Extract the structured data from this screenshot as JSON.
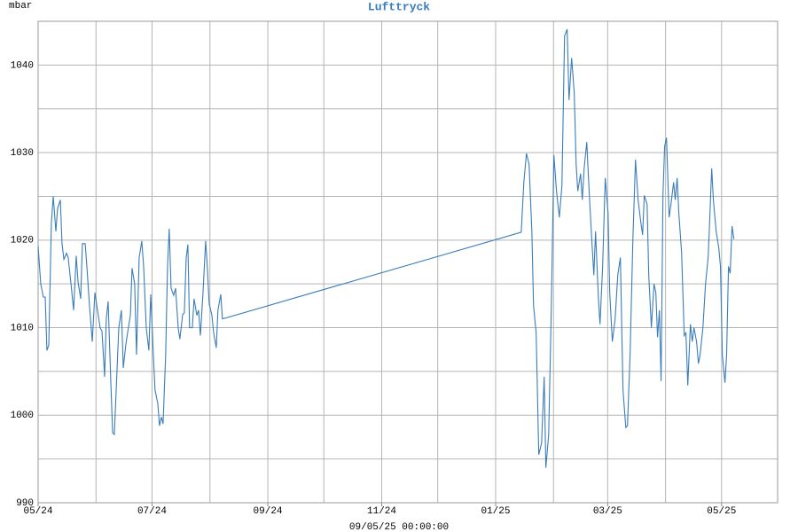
{
  "chart_data": {
    "type": "line",
    "title": "Lufttryck",
    "y_unit": "mbar",
    "footer": "09/05/25 00:00:00",
    "color": "#3a7dba",
    "title_color": "#3a7dba",
    "grid": true,
    "xlim": [
      0,
      396
    ],
    "xticks": [
      {
        "value": 0,
        "label": "05/24"
      },
      {
        "value": 61,
        "label": "07/24"
      },
      {
        "value": 123,
        "label": "09/24"
      },
      {
        "value": 184,
        "label": "11/24"
      },
      {
        "value": 245,
        "label": "01/25"
      },
      {
        "value": 305,
        "label": "03/25"
      },
      {
        "value": 366,
        "label": "05/25"
      }
    ],
    "x_minor_ticks": [
      31,
      92,
      153,
      214,
      276,
      336
    ],
    "ylim": [
      990,
      1045
    ],
    "yticks": [
      990,
      1000,
      1010,
      1020,
      1030,
      1040
    ],
    "y_minor_ticks": [
      995,
      1005,
      1015,
      1025,
      1035
    ],
    "x": [
      0,
      1.4,
      2.8,
      3.8,
      4.7,
      5.7,
      7.1,
      8.1,
      9.5,
      10.4,
      11.9,
      12.8,
      13.8,
      15.2,
      16.1,
      17.6,
      19.0,
      20.4,
      21.4,
      22.8,
      23.7,
      25.2,
      26.1,
      27.5,
      29.0,
      30.4,
      31.8,
      33.2,
      34.2,
      35.6,
      36.5,
      37.5,
      38.9,
      39.9,
      40.8,
      42.2,
      43.2,
      44.6,
      45.6,
      47.0,
      47.9,
      49.4,
      50.3,
      51.7,
      52.7,
      54.1,
      55.5,
      56.5,
      57.9,
      59.3,
      60.3,
      61.7,
      62.6,
      64.1,
      65.0,
      66.0,
      66.9,
      68.3,
      69.3,
      70.2,
      71.2,
      72.6,
      73.6,
      75.0,
      75.9,
      77.4,
      78.3,
      79.3,
      80.2,
      81.1,
      82.6,
      83.5,
      85.0,
      85.9,
      86.9,
      88.3,
      89.7,
      90.6,
      91.6,
      93.0,
      94.0,
      95.4,
      96.3,
      97.8,
      98.7,
      258.7,
      260.1,
      261.5,
      262.9,
      264.4,
      265.3,
      266.7,
      268.1,
      269.6,
      271.0,
      271.9,
      273.4,
      274.8,
      276.2,
      277.6,
      279.1,
      280.5,
      281.9,
      283.3,
      284.3,
      285.7,
      287.1,
      288.1,
      289.0,
      290.5,
      291.4,
      292.4,
      293.8,
      295.2,
      296.6,
      297.6,
      298.5,
      300.0,
      300.9,
      302.3,
      303.7,
      305.2,
      306.1,
      307.5,
      309.0,
      310.4,
      311.8,
      313.2,
      314.7,
      315.6,
      317.0,
      318.5,
      319.9,
      321.3,
      322.7,
      323.7,
      324.6,
      326.1,
      327.0,
      328.4,
      329.8,
      330.8,
      331.7,
      332.7,
      333.6,
      334.6,
      335.5,
      336.5,
      337.9,
      338.9,
      340.3,
      341.2,
      342.2,
      343.1,
      344.6,
      346.0,
      346.9,
      347.9,
      349.3,
      350.3,
      351.2,
      352.6,
      353.6,
      354.5,
      356.0,
      357.4,
      358.8,
      359.7,
      360.7,
      361.6,
      363.1,
      364.5,
      365.4,
      366.4,
      367.8,
      368.7,
      369.7,
      370.6,
      371.6,
      372.6
    ],
    "values": [
      1019.3,
      1015,
      1013.5,
      1013.5,
      1007.4,
      1008,
      1022,
      1025,
      1021,
      1023.6,
      1024.6,
      1019.6,
      1017.8,
      1018.5,
      1018,
      1015,
      1012,
      1018.2,
      1015.2,
      1013.3,
      1019.6,
      1019.6,
      1017,
      1012.5,
      1008.4,
      1014,
      1012,
      1010,
      1009.6,
      1004.4,
      1011,
      1013,
      1003.9,
      998,
      997.8,
      1004.9,
      1010,
      1012,
      1005.4,
      1008.1,
      1009.4,
      1011.4,
      1016.8,
      1015,
      1006.9,
      1018,
      1019.9,
      1017,
      1010,
      1007.4,
      1013.8,
      1006.9,
      1002.9,
      1001.3,
      998.8,
      999.8,
      999,
      1006.9,
      1017,
      1021.3,
      1014.5,
      1013.7,
      1014.5,
      1010,
      1008.7,
      1011.5,
      1011.7,
      1018,
      1019.5,
      1010,
      1010,
      1013.3,
      1011.4,
      1012,
      1009.1,
      1014,
      1019.9,
      1017,
      1012.7,
      1011.5,
      1009.4,
      1007.7,
      1012,
      1013.8,
      1011,
      1020.9,
      1026.6,
      1029.9,
      1028.7,
      1021,
      1012.5,
      1009.4,
      995.5,
      996.8,
      1004.4,
      994,
      997.8,
      1012,
      1029.7,
      1025.6,
      1022.6,
      1026.2,
      1043.3,
      1044.1,
      1036,
      1040.8,
      1036.8,
      1028.7,
      1025.6,
      1027.6,
      1024.6,
      1028.2,
      1031.2,
      1025.1,
      1019.6,
      1016,
      1021,
      1013.5,
      1010.4,
      1017,
      1027.1,
      1023.1,
      1014,
      1008.4,
      1011,
      1016,
      1018,
      1002.9,
      998.6,
      998.8,
      1006.9,
      1020.1,
      1029.2,
      1024.6,
      1022.1,
      1020.6,
      1025.1,
      1024.1,
      1016,
      1010,
      1015,
      1014,
      1008.9,
      1012,
      1003.9,
      1025.1,
      1030.7,
      1031.7,
      1022.6,
      1024.1,
      1026.6,
      1024.6,
      1027.1,
      1023.1,
      1018.5,
      1009.1,
      1009.4,
      1003.4,
      1010.4,
      1008.4,
      1010,
      1008.4,
      1005.9,
      1006.9,
      1010,
      1015,
      1018,
      1022.6,
      1028.2,
      1024.6,
      1021,
      1019.1,
      1017,
      1006.9,
      1003.7,
      1006.9,
      1017,
      1016.2,
      1021.6,
      1020.1
    ]
  }
}
